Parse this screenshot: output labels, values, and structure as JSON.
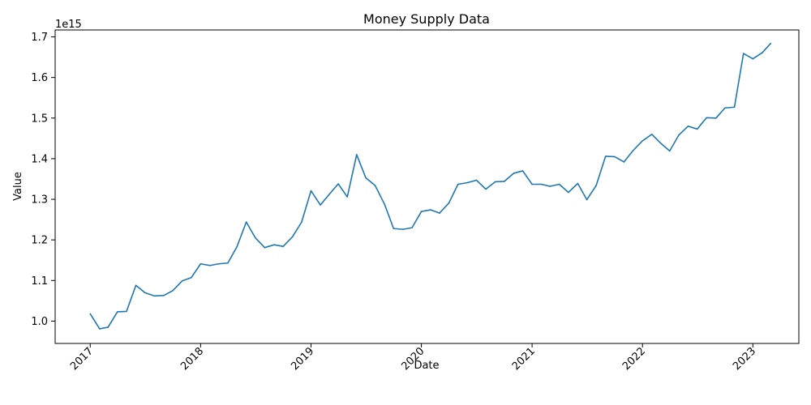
{
  "chart_data": {
    "type": "line",
    "title": "Money Supply Data",
    "xlabel": "Date",
    "ylabel": "Value",
    "y_offset_label": "1e15",
    "y_scale": 1000000000000000.0,
    "xlim": [
      "2016-09-07",
      "2023-06-02"
    ],
    "ylim": [
      0.945,
      1.717
    ],
    "grid": false,
    "x_ticks": [
      {
        "date": "2017-01-01",
        "label": "2017"
      },
      {
        "date": "2018-01-01",
        "label": "2018"
      },
      {
        "date": "2019-01-01",
        "label": "2019"
      },
      {
        "date": "2020-01-01",
        "label": "2020"
      },
      {
        "date": "2021-01-01",
        "label": "2021"
      },
      {
        "date": "2022-01-01",
        "label": "2022"
      },
      {
        "date": "2023-01-01",
        "label": "2023"
      }
    ],
    "y_ticks": [
      {
        "value": 1.0,
        "label": "1.0"
      },
      {
        "value": 1.1,
        "label": "1.1"
      },
      {
        "value": 1.2,
        "label": "1.2"
      },
      {
        "value": 1.3,
        "label": "1.3"
      },
      {
        "value": 1.4,
        "label": "1.4"
      },
      {
        "value": 1.5,
        "label": "1.5"
      },
      {
        "value": 1.6,
        "label": "1.6"
      },
      {
        "value": 1.7,
        "label": "1.7"
      }
    ],
    "series": [
      {
        "color": "#1f77b4",
        "x": [
          "2017-01-01",
          "2017-02-01",
          "2017-03-01",
          "2017-04-01",
          "2017-05-01",
          "2017-06-01",
          "2017-07-01",
          "2017-08-01",
          "2017-09-01",
          "2017-10-01",
          "2017-11-01",
          "2017-12-01",
          "2018-01-01",
          "2018-02-01",
          "2018-03-01",
          "2018-04-01",
          "2018-05-01",
          "2018-06-01",
          "2018-07-01",
          "2018-08-01",
          "2018-09-01",
          "2018-10-01",
          "2018-11-01",
          "2018-12-01",
          "2019-01-01",
          "2019-02-01",
          "2019-03-01",
          "2019-04-01",
          "2019-05-01",
          "2019-06-01",
          "2019-07-01",
          "2019-08-01",
          "2019-09-01",
          "2019-10-01",
          "2019-11-01",
          "2019-12-01",
          "2020-01-01",
          "2020-02-01",
          "2020-03-01",
          "2020-04-01",
          "2020-05-01",
          "2020-06-01",
          "2020-07-01",
          "2020-08-01",
          "2020-09-01",
          "2020-10-01",
          "2020-11-01",
          "2020-12-01",
          "2021-01-01",
          "2021-02-01",
          "2021-03-01",
          "2021-04-01",
          "2021-05-01",
          "2021-06-01",
          "2021-07-01",
          "2021-08-01",
          "2021-09-01",
          "2021-10-01",
          "2021-11-01",
          "2021-12-01",
          "2022-01-01",
          "2022-02-01",
          "2022-03-01",
          "2022-04-01",
          "2022-05-01",
          "2022-06-01",
          "2022-07-01",
          "2022-08-01",
          "2022-09-01",
          "2022-10-01",
          "2022-11-01",
          "2022-12-01",
          "2023-01-01",
          "2023-02-01",
          "2023-03-01"
        ],
        "values": [
          1.018,
          0.981,
          0.985,
          1.023,
          1.024,
          1.088,
          1.07,
          1.062,
          1.063,
          1.075,
          1.099,
          1.107,
          1.141,
          1.137,
          1.141,
          1.143,
          1.183,
          1.244,
          1.205,
          1.181,
          1.188,
          1.184,
          1.208,
          1.244,
          1.321,
          1.286,
          1.311,
          1.338,
          1.306,
          1.41,
          1.353,
          1.334,
          1.288,
          1.228,
          1.226,
          1.23,
          1.27,
          1.274,
          1.266,
          1.291,
          1.337,
          1.341,
          1.347,
          1.325,
          1.343,
          1.344,
          1.364,
          1.37,
          1.337,
          1.337,
          1.332,
          1.337,
          1.317,
          1.339,
          1.299,
          1.334,
          1.406,
          1.405,
          1.392,
          1.42,
          1.444,
          1.46,
          1.439,
          1.419,
          1.458,
          1.48,
          1.473,
          1.501,
          1.5,
          1.525,
          1.527,
          1.659,
          1.646,
          1.661,
          1.684
        ]
      }
    ]
  }
}
